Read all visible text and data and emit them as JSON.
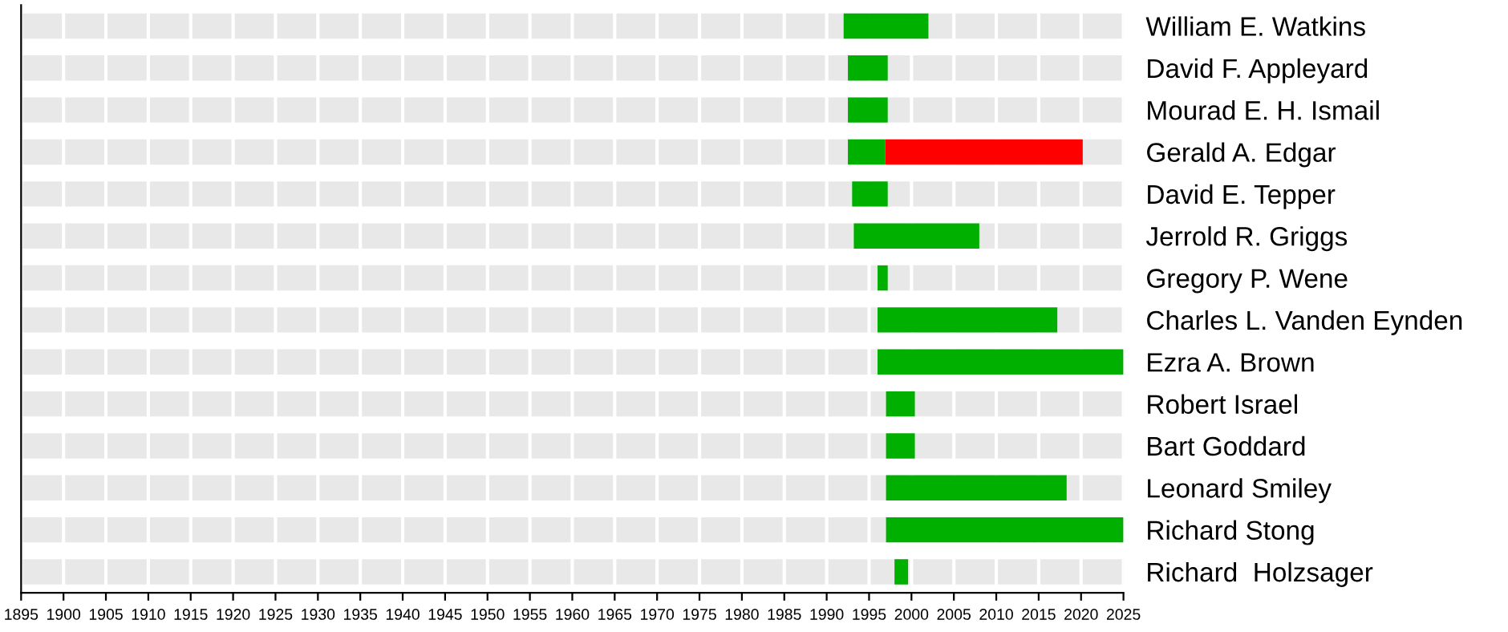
{
  "chart_data": {
    "type": "bar",
    "orientation": "horizontal",
    "categories": [
      "William E. Watkins",
      "David F. Appleyard",
      "Mourad E. H. Ismail",
      "Gerald A. Edgar",
      "David E. Tepper",
      "Jerrold R. Griggs",
      "Gregory P. Wene",
      "Charles L. Vanden Eynden",
      "Ezra A. Brown",
      "Robert Israel",
      "Bart Goddard",
      "Leonard Smiley",
      "Richard Stong",
      "Richard  Holzsager"
    ],
    "series": [
      {
        "color": "#00b000",
        "base": [
          1992,
          1992.5,
          1992.5,
          1992.5,
          1993,
          1993.2,
          1996,
          1996,
          1996,
          1997,
          1997,
          1997,
          1997,
          1998
        ],
        "values": [
          10,
          4.7,
          4.7,
          4.4,
          4.2,
          14.8,
          1.2,
          21.2,
          29,
          3.4,
          3.4,
          21.3,
          28,
          1.6
        ]
      },
      {
        "color": "#ff0000",
        "base": [
          null,
          null,
          null,
          1996.9,
          null,
          null,
          null,
          null,
          null,
          null,
          null,
          null,
          null,
          null
        ],
        "values": [
          null,
          null,
          null,
          23.3,
          null,
          null,
          null,
          null,
          null,
          null,
          null,
          null,
          null,
          null
        ]
      }
    ],
    "xlim": [
      1895,
      2025
    ],
    "xticks": [
      1895,
      1900,
      1905,
      1910,
      1915,
      1920,
      1925,
      1930,
      1935,
      1940,
      1945,
      1950,
      1955,
      1960,
      1965,
      1970,
      1975,
      1980,
      1985,
      1990,
      1995,
      2000,
      2005,
      2010,
      2015,
      2020,
      2025
    ],
    "grid": "x"
  }
}
